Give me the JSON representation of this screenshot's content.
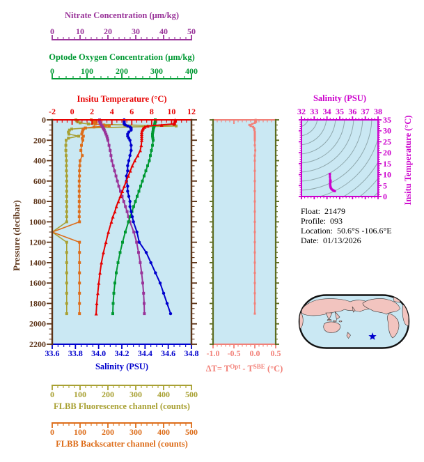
{
  "colors": {
    "plot_bg": "#cae8f3",
    "axis_brown": "#5c3317",
    "temp_red": "#e60000",
    "sal_blue": "#0000cd",
    "oxy_green": "#009933",
    "nitrate_purple": "#993399",
    "fluo_olive": "#a8a032",
    "back_orange": "#dd6d1a",
    "dt_salmon": "#f28078",
    "dt_border_olive": "#5c6b1f",
    "ts_magenta": "#cc00cc",
    "ts_contour": "#8fa8ad",
    "map_land": "#f2c4bf",
    "map_ocean": "#cae8f3",
    "map_outline": "#111111",
    "star_blue": "#0000cd",
    "info_black": "#000000"
  },
  "axes": {
    "nitrate": {
      "title": "Nitrate Concentration (μm/kg)",
      "range": [
        0,
        50
      ],
      "minor_step": 2,
      "tick_values": [
        0,
        10,
        20,
        30,
        40,
        50
      ],
      "tick_labels": [
        "0",
        "10",
        "20",
        "30",
        "40",
        "50"
      ]
    },
    "oxygen": {
      "title": "Optode Oxygen Concentration (μm/kg)",
      "range": [
        0,
        400
      ],
      "minor_step": 20,
      "tick_values": [
        0,
        100,
        200,
        300,
        400
      ],
      "tick_labels": [
        "0",
        "100",
        "200",
        "300",
        "400"
      ]
    },
    "temperature": {
      "title": "Insitu Temperature (°C)",
      "range": [
        -2,
        12
      ],
      "minor_step": 0.5,
      "tick_values": [
        -2,
        0,
        2,
        4,
        6,
        8,
        10,
        12
      ],
      "tick_labels": [
        "-2",
        "0",
        "2",
        "4",
        "6",
        "8",
        "10",
        "12"
      ]
    },
    "pressure": {
      "title": "Pressure (decibar)",
      "range": [
        0,
        2200
      ],
      "minor_step": 50,
      "tick_values": [
        0,
        200,
        400,
        600,
        800,
        1000,
        1200,
        1400,
        1600,
        1800,
        2000,
        2200
      ],
      "tick_labels": [
        "0",
        "200",
        "400",
        "600",
        "800",
        "1000",
        "1200",
        "1400",
        "1600",
        "1800",
        "2000",
        "2200"
      ]
    },
    "salinity": {
      "title": "Salinity (PSU)",
      "range": [
        33.6,
        34.8
      ],
      "minor_step": 0.05,
      "tick_values": [
        33.6,
        33.8,
        34.0,
        34.2,
        34.4,
        34.6,
        34.8
      ],
      "tick_labels": [
        "33.6",
        "33.8",
        "34.0",
        "34.2",
        "34.4",
        "34.6",
        "34.8"
      ]
    },
    "delta_t": {
      "title_parts": {
        "pre": "ΔT= T",
        "sup1": "Opt",
        "mid": " - T",
        "sup2": "SBE",
        "post": " (°C)"
      },
      "range": [
        -1,
        0.5
      ],
      "minor_step": 0.1,
      "tick_values": [
        -1,
        -0.5,
        0,
        0.5
      ],
      "tick_labels": [
        "-1.0",
        "-0.5",
        "0.0",
        "0.5"
      ]
    },
    "fluorescence": {
      "title": "FLBB Fluorescence channel (counts)",
      "range": [
        0,
        500
      ],
      "minor_step": 20,
      "tick_values": [
        0,
        100,
        200,
        300,
        400,
        500
      ],
      "tick_labels": [
        "0",
        "100",
        "200",
        "300",
        "400",
        "500"
      ]
    },
    "backscatter": {
      "title": "FLBB Backscatter channel (counts)",
      "range": [
        0,
        500
      ],
      "minor_step": 20,
      "tick_values": [
        0,
        100,
        200,
        300,
        400,
        500
      ],
      "tick_labels": [
        "0",
        "100",
        "200",
        "300",
        "400",
        "500"
      ]
    },
    "ts_salinity": {
      "title": "Salinity (PSU)",
      "range": [
        32,
        38
      ],
      "minor_step": 0.25,
      "tick_values": [
        32,
        33,
        34,
        35,
        36,
        37,
        38
      ],
      "tick_labels": [
        "32",
        "33",
        "34",
        "35",
        "36",
        "37",
        "38"
      ]
    },
    "ts_temperature": {
      "title": "Insitu Temperature (°C)",
      "range": [
        0,
        35
      ],
      "minor_step": 1,
      "tick_values": [
        0,
        5,
        10,
        15,
        20,
        25,
        30,
        35
      ],
      "tick_labels": [
        "0",
        "5",
        "10",
        "15",
        "20",
        "25",
        "30",
        "35"
      ]
    }
  },
  "info": {
    "lines": [
      {
        "label": "Float:",
        "value": "21479"
      },
      {
        "label": "Profile:",
        "value": "093"
      },
      {
        "label": "Location:",
        "value": "50.6°S -106.6°E"
      },
      {
        "label": "Date:",
        "value": "01/13/2026"
      }
    ]
  },
  "map": {
    "star": {
      "fx": 0.669,
      "fy": 0.779
    }
  },
  "chart_data": {
    "type": "line",
    "description": "Ocean float vertical profiles vs pressure, temperature-correction panel, and T-S diagram",
    "pressure_dbar": [
      0,
      10,
      20,
      30,
      40,
      50,
      60,
      70,
      80,
      90,
      100,
      120,
      140,
      160,
      180,
      200,
      250,
      300,
      350,
      400,
      450,
      500,
      550,
      600,
      650,
      700,
      750,
      800,
      850,
      900,
      950,
      1000,
      1100,
      1200,
      1300,
      1400,
      1500,
      1600,
      1700,
      1800,
      1900
    ],
    "series": [
      {
        "name": "FLBB Fluorescence channel (counts)",
        "axis": "fluorescence",
        "color_key": "fluo_olive",
        "marker": "square",
        "marker_size": 4,
        "width": 1.6,
        "skip_zero_marker": true,
        "values": [
          85,
          88,
          92,
          100,
          130,
          260,
          445,
          280,
          120,
          70,
          62,
          58,
          60,
          95,
          58,
          50,
          49,
          49,
          50,
          51,
          51,
          51,
          52,
          52,
          52,
          52,
          52,
          52,
          52,
          52,
          52,
          52,
          0,
          52,
          52,
          52,
          52,
          52,
          52,
          52,
          52
        ]
      },
      {
        "name": "FLBB Backscatter channel (counts)",
        "axis": "backscatter",
        "color_key": "back_orange",
        "marker": "square",
        "marker_size": 4,
        "width": 1.6,
        "skip_zero_marker": true,
        "values": [
          140,
          148,
          158,
          150,
          155,
          185,
          205,
          150,
          118,
          112,
          110,
          108,
          106,
          112,
          108,
          110,
          105,
          103,
          108,
          100,
          99,
          98,
          98,
          97,
          97,
          97,
          97,
          97,
          97,
          97,
          97,
          98,
          0,
          98,
          98,
          98,
          98,
          98,
          98,
          98,
          98
        ]
      },
      {
        "name": "Nitrate Concentration (μm/kg)",
        "axis": "nitrate",
        "color_key": "nitrate_purple",
        "marker": "square",
        "marker_size": 4,
        "width": 2,
        "values": [
          17.0,
          17.0,
          17.1,
          17.2,
          17.4,
          17.6,
          17.9,
          18.1,
          18.3,
          18.5,
          18.7,
          19.0,
          19.3,
          19.6,
          19.8,
          20.0,
          20.4,
          20.8,
          21.1,
          21.4,
          21.9,
          22.4,
          22.9,
          23.4,
          23.9,
          24.5,
          25.1,
          25.7,
          26.3,
          26.9,
          27.4,
          27.9,
          29.3,
          30.3,
          31.0,
          31.6,
          32.1,
          32.5,
          32.8,
          33.0,
          33.1
        ]
      },
      {
        "name": "Optode Oxygen Concentration (μm/kg)",
        "axis": "oxygen",
        "color_key": "oxy_green",
        "marker": "square",
        "marker_size": 4,
        "width": 2,
        "values": [
          296,
          296,
          296,
          295,
          295,
          294,
          293,
          292,
          291,
          290,
          290,
          289,
          288,
          288,
          289,
          290,
          288,
          285,
          282,
          279,
          274,
          269,
          264,
          259,
          254,
          249,
          244,
          239,
          234,
          229,
          224,
          219,
          210,
          202,
          195,
          189,
          184,
          180,
          177,
          175,
          174
        ]
      },
      {
        "name": "Salinity (PSU)",
        "axis": "salinity",
        "color_key": "sal_blue",
        "marker": "circle",
        "marker_size": 4.4,
        "width": 2,
        "values": [
          34.22,
          34.22,
          34.22,
          34.22,
          34.22,
          34.23,
          34.25,
          34.27,
          34.28,
          34.28,
          34.28,
          34.26,
          34.25,
          34.25,
          34.26,
          34.27,
          34.28,
          34.28,
          34.27,
          34.26,
          34.25,
          34.25,
          34.24,
          34.24,
          34.25,
          34.25,
          34.26,
          34.27,
          34.27,
          34.28,
          34.29,
          34.3,
          34.33,
          34.35,
          34.41,
          34.45,
          34.49,
          34.53,
          34.56,
          34.59,
          34.62
        ]
      },
      {
        "name": "Insitu Temperature (°C)",
        "axis": "temperature",
        "color_key": "temp_red",
        "marker": "triangle",
        "marker_size": 5,
        "width": 2,
        "values": [
          10.35,
          10.35,
          10.3,
          10.3,
          10.25,
          9.0,
          7.6,
          7.3,
          7.15,
          7.1,
          7.05,
          7.0,
          7.0,
          7.0,
          7.0,
          7.0,
          6.95,
          6.85,
          6.6,
          6.3,
          6.05,
          5.85,
          5.65,
          5.45,
          5.25,
          5.05,
          4.85,
          4.65,
          4.45,
          4.3,
          4.1,
          3.95,
          3.65,
          3.4,
          3.15,
          2.95,
          2.8,
          2.68,
          2.58,
          2.48,
          2.42
        ]
      }
    ],
    "delta_t_profile": {
      "pressure_dbar": [
        0,
        10,
        20,
        30,
        40,
        50,
        60,
        70,
        80,
        90,
        100,
        120,
        140,
        160,
        180,
        200,
        250,
        300,
        350,
        400,
        500,
        600,
        700,
        800,
        900,
        1000,
        1100,
        1200,
        1300,
        1400,
        1500,
        1600,
        1700,
        1800,
        1900
      ],
      "values": [
        0.02,
        0.02,
        0.03,
        0.0,
        -0.06,
        -0.13,
        -0.1,
        -0.04,
        -0.02,
        -0.01,
        -0.01,
        0.0,
        0.0,
        0.0,
        0.0,
        0.0,
        0.0,
        0.01,
        0.0,
        0.0,
        0.0,
        0.0,
        0.0,
        0.0,
        0.0,
        0.0,
        0.0,
        0.0,
        0.0,
        0.0,
        0.0,
        0.0,
        0.0,
        0.0,
        0.0
      ]
    },
    "ts_diagram_note": "T-S curve plots the Salinity series (x) against the Insitu Temperature series (y) over gray isopycnal contour arcs"
  }
}
